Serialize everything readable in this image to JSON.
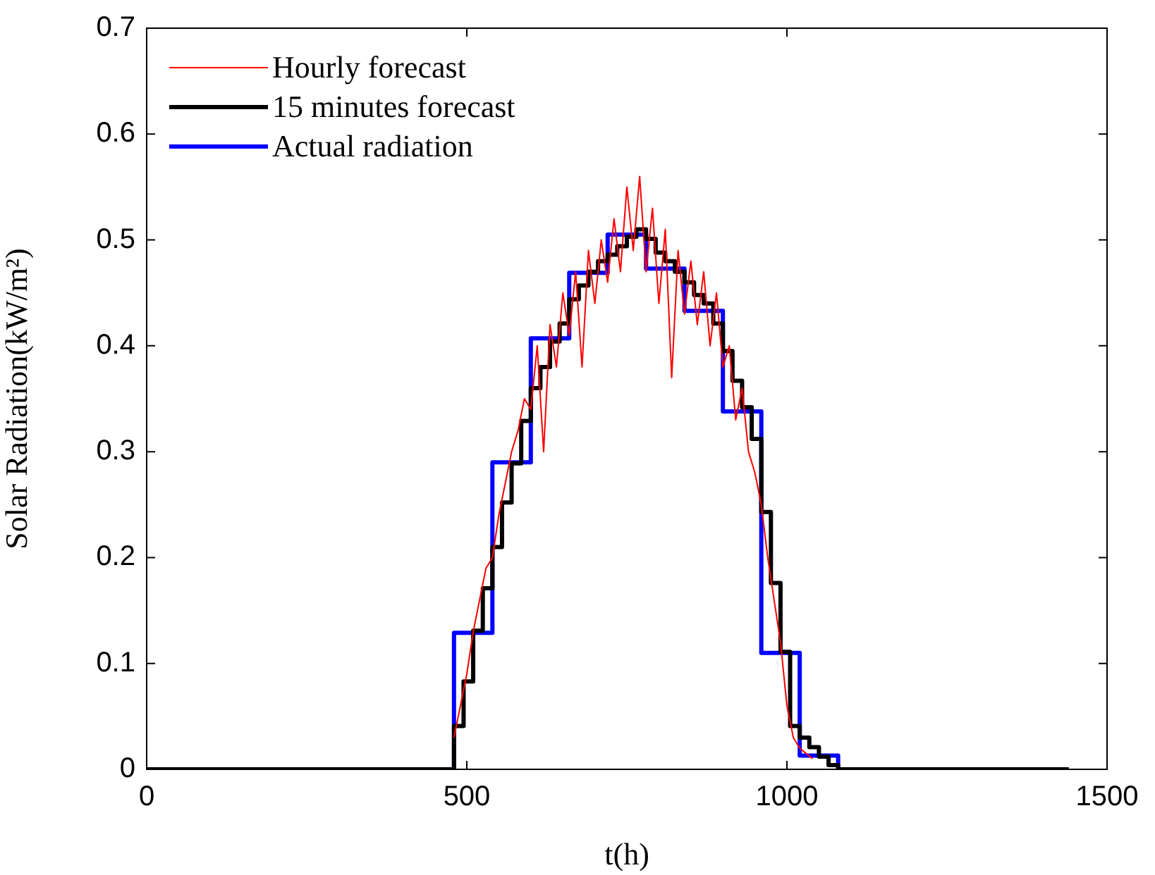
{
  "chart_data": {
    "type": "line",
    "xlabel": "t(h)",
    "ylabel": "Solar Radiation(kW/m²)",
    "xlim": [
      0,
      1500
    ],
    "xticks": [
      0,
      500,
      1000,
      1500
    ],
    "ylim": [
      0,
      0.7
    ],
    "yticks": [
      0,
      0.1,
      0.2,
      0.3,
      0.4,
      0.5,
      0.6,
      0.7
    ],
    "grid": false,
    "legend": "top left",
    "marker": "none",
    "series": [
      {
        "name": "Hourly forecast",
        "type": "line",
        "color": "#ff0000",
        "x": [
          480,
          490,
          500,
          510,
          520,
          530,
          540,
          550,
          560,
          570,
          580,
          590,
          600,
          610,
          620,
          630,
          640,
          650,
          660,
          670,
          680,
          690,
          700,
          710,
          720,
          730,
          740,
          750,
          760,
          770,
          780,
          790,
          800,
          810,
          820,
          830,
          840,
          850,
          860,
          870,
          880,
          890,
          900,
          910,
          920,
          930,
          940,
          950,
          960,
          970,
          980,
          990,
          1000,
          1010,
          1020,
          1030,
          1040
        ],
        "values": [
          0.03,
          0.06,
          0.09,
          0.13,
          0.16,
          0.19,
          0.2,
          0.24,
          0.27,
          0.3,
          0.32,
          0.35,
          0.34,
          0.4,
          0.3,
          0.42,
          0.38,
          0.45,
          0.41,
          0.47,
          0.38,
          0.49,
          0.44,
          0.5,
          0.46,
          0.52,
          0.47,
          0.55,
          0.49,
          0.56,
          0.47,
          0.53,
          0.44,
          0.51,
          0.37,
          0.49,
          0.43,
          0.48,
          0.42,
          0.47,
          0.4,
          0.45,
          0.38,
          0.4,
          0.33,
          0.36,
          0.3,
          0.28,
          0.25,
          0.2,
          0.16,
          0.12,
          0.06,
          0.03,
          0.02,
          0.015,
          0.01
        ]
      },
      {
        "name": "15 minutes forecast",
        "type": "step",
        "color": "#000000",
        "x": [
          0,
          480,
          495,
          510,
          525,
          540,
          555,
          570,
          585,
          600,
          615,
          630,
          645,
          660,
          675,
          690,
          705,
          720,
          735,
          750,
          765,
          780,
          795,
          810,
          825,
          840,
          855,
          870,
          885,
          900,
          915,
          930,
          945,
          960,
          975,
          990,
          1005,
          1020,
          1035,
          1050,
          1065,
          1080,
          1440
        ],
        "values": [
          0,
          0.041,
          0.083,
          0.131,
          0.171,
          0.21,
          0.252,
          0.289,
          0.329,
          0.36,
          0.38,
          0.404,
          0.421,
          0.444,
          0.457,
          0.47,
          0.48,
          0.486,
          0.494,
          0.503,
          0.51,
          0.501,
          0.488,
          0.48,
          0.47,
          0.46,
          0.448,
          0.44,
          0.421,
          0.395,
          0.367,
          0.342,
          0.312,
          0.243,
          0.176,
          0.111,
          0.041,
          0.03,
          0.021,
          0.012,
          0.004,
          0,
          0
        ]
      },
      {
        "name": "Actual radiation",
        "type": "step",
        "color": "#0000ff",
        "x": [
          0,
          480,
          540,
          600,
          660,
          720,
          780,
          840,
          900,
          960,
          1020,
          1080,
          1440
        ],
        "values": [
          0,
          0.129,
          0.29,
          0.407,
          0.469,
          0.505,
          0.473,
          0.433,
          0.338,
          0.11,
          0.013,
          0,
          0
        ]
      }
    ]
  }
}
